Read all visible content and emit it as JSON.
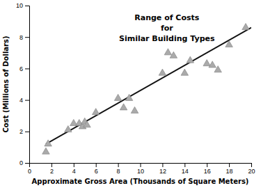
{
  "chart_data": {
    "type": "scatter",
    "title": [
      "Range of Costs",
      "for",
      "Similar Building Types"
    ],
    "xlabel": "Approximate Gross Area (Thousands of Square Meters)",
    "ylabel": "Cost (Millions of Dollars)",
    "xlim": [
      0,
      20
    ],
    "ylim": [
      0,
      10
    ],
    "xticks": [
      0,
      2,
      4,
      6,
      8,
      10,
      12,
      14,
      16,
      18,
      20
    ],
    "yticks": [
      0,
      2,
      4,
      6,
      8,
      10
    ],
    "grid": false,
    "series": [
      {
        "type": "scatter",
        "marker": "triangle",
        "color": "#aaaaaa",
        "x": [
          1.5,
          1.7,
          3.5,
          4.0,
          4.5,
          4.8,
          5.0,
          5.2,
          6.0,
          8.0,
          8.5,
          9.0,
          9.5,
          12.0,
          12.5,
          13.0,
          14.0,
          14.5,
          16.0,
          16.5,
          17.0,
          18.0,
          19.5
        ],
        "values": [
          0.7,
          1.2,
          2.1,
          2.5,
          2.5,
          2.3,
          2.6,
          2.4,
          3.2,
          4.1,
          3.5,
          4.1,
          3.3,
          5.7,
          7.0,
          6.8,
          5.7,
          6.5,
          6.3,
          6.2,
          5.9,
          7.5,
          8.6
        ]
      },
      {
        "type": "line",
        "line_style": "solid",
        "color": "#111111",
        "x": [
          1.5,
          20
        ],
        "values": [
          1.2,
          8.6
        ]
      }
    ]
  }
}
